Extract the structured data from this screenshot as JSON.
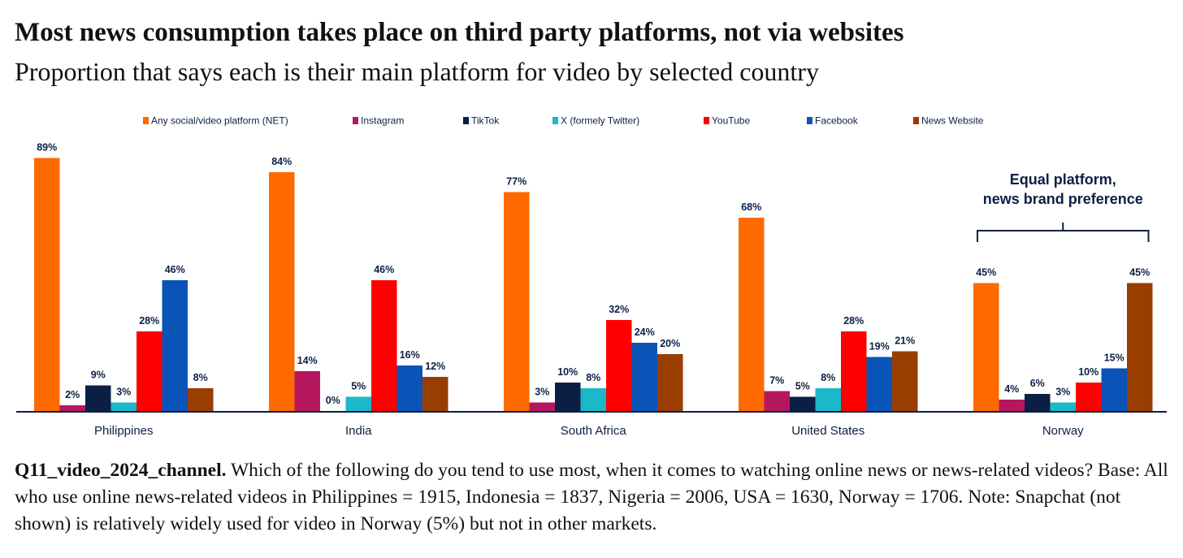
{
  "title": "Most news consumption takes place on third party platforms, not via websites",
  "subtitle": "Proportion that says each is their main platform for video by selected country",
  "chart_data": {
    "type": "bar",
    "categories": [
      "Philippines",
      "India",
      "South Africa",
      "United States",
      "Norway"
    ],
    "series": [
      {
        "name": "Any social/video platform (NET)",
        "color": "#ff6a00",
        "values": [
          89,
          84,
          77,
          68,
          45
        ]
      },
      {
        "name": "Instagram",
        "color": "#b5175e",
        "values": [
          2,
          14,
          3,
          7,
          4
        ]
      },
      {
        "name": "TikTok",
        "color": "#0b1f45",
        "values": [
          9,
          0,
          10,
          5,
          6
        ]
      },
      {
        "name": "X (formely Twitter)",
        "color": "#1ab8c8",
        "values": [
          3,
          5,
          8,
          8,
          3
        ]
      },
      {
        "name": "YouTube",
        "color": "#ff0000",
        "values": [
          28,
          46,
          32,
          28,
          10
        ]
      },
      {
        "name": "Facebook",
        "color": "#0a54b8",
        "values": [
          46,
          16,
          24,
          19,
          15
        ]
      },
      {
        "name": "News Website",
        "color": "#993d00",
        "values": [
          8,
          12,
          20,
          21,
          45
        ]
      }
    ],
    "value_suffix": "%",
    "ylim": [
      0,
      100
    ],
    "legend_position": "top",
    "grid": false,
    "annotation": {
      "text": [
        "Equal platform,",
        "news brand preference"
      ],
      "target_category": "Norway"
    }
  },
  "note": {
    "label": "Q11_video_2024_channel.",
    "text": " Which of the following do you tend to use most, when it comes to watching online news or news-related videos? Base: All who use online news-related videos in Philippines = 1915, Indonesia = 1837, Nigeria = 2006, USA = 1630, Norway = 1706. Note: Snapchat (not shown) is relatively widely used for video in Norway (5%) but not in other markets."
  }
}
